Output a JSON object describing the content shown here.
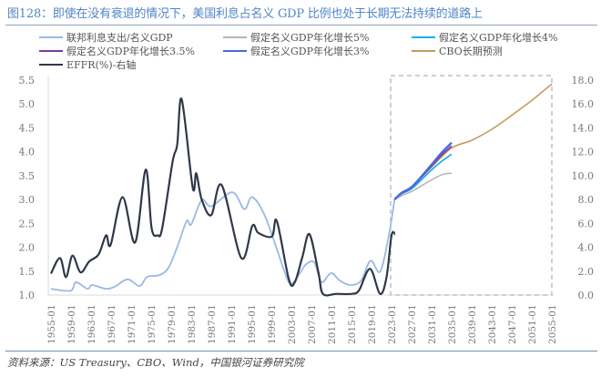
{
  "title": "图128：即使在没有衰退的情况下，美国利息占名义 GDP 比例也处于长期无法持续的道路上",
  "source": "资料来源：US Treasury、CBO、Wind，中国银河证券研究院",
  "chart_data": {
    "type": "line",
    "legend_position": "top",
    "grid": false,
    "projection_box": {
      "x_from": 2023,
      "x_to": 2055,
      "style": "dashed"
    },
    "x_tick_labels": [
      "1955-01",
      "1959-01",
      "1963-01",
      "1967-01",
      "1971-01",
      "1975-01",
      "1979-01",
      "1983-01",
      "1987-01",
      "1991-01",
      "1995-01",
      "1999-01",
      "2003-01",
      "2007-01",
      "2011-01",
      "2015-01",
      "2019-01",
      "2023-01",
      "2027-01",
      "2031-01",
      "2035-01",
      "2039-01",
      "2043-01",
      "2047-01",
      "2051-01",
      "2055-01"
    ],
    "xlim": [
      1955,
      2055
    ],
    "y_left": {
      "lim": [
        1.0,
        5.5
      ],
      "ticks": [
        "1.0",
        "1.5",
        "2.0",
        "2.5",
        "3.0",
        "3.5",
        "4.0",
        "4.5",
        "5.0",
        "5.5"
      ]
    },
    "y_right": {
      "lim": [
        0,
        18
      ],
      "ticks": [
        "0.0",
        "2.0",
        "4.0",
        "6.0",
        "8.0",
        "10.0",
        "12.0",
        "14.0",
        "16.0",
        "18.0"
      ]
    },
    "series": [
      {
        "name": "联邦利息支出/名义GDP",
        "axis": "left",
        "color": "#9bb9e2",
        "x": [
          1955,
          1958.9,
          1960,
          1962.3,
          1963.2,
          1966,
          1967.8,
          1970.3,
          1972.7,
          1974.2,
          1976.7,
          1978.5,
          1980.3,
          1982.1,
          1983,
          1985.1,
          1987,
          1991.2,
          1993.6,
          1995.2,
          1997.9,
          2002.2,
          2003.4,
          2004.7,
          2006,
          2007.6,
          2009,
          2010.9,
          2012.7,
          2014.8,
          2016.9,
          2018.8,
          2020.7,
          2022.4,
          2023.6
        ],
        "y": [
          1.13,
          1.09,
          1.27,
          1.13,
          1.21,
          1.13,
          1.18,
          1.33,
          1.19,
          1.38,
          1.42,
          1.58,
          2.03,
          2.55,
          2.48,
          2.99,
          2.86,
          3.15,
          2.8,
          3.05,
          2.61,
          1.33,
          1.27,
          1.46,
          1.65,
          1.68,
          1.27,
          1.46,
          1.3,
          1.21,
          1.3,
          1.72,
          1.49,
          2.22,
          3.0
        ]
      },
      {
        "name": "假定名义GDP年化增长5%",
        "axis": "left",
        "color": "#b4b4b4",
        "x": [
          2023.6,
          2025,
          2027.2,
          2030.8,
          2033.3,
          2035
        ],
        "y": [
          3.0,
          3.08,
          3.18,
          3.4,
          3.53,
          3.55
        ]
      },
      {
        "name": "假定名义GDP年化增长4%",
        "axis": "left",
        "color": "#1cb0e8",
        "x": [
          2023.6,
          2025,
          2027.2,
          2030.8,
          2033,
          2035
        ],
        "y": [
          3.0,
          3.12,
          3.24,
          3.6,
          3.8,
          3.95
        ]
      },
      {
        "name": "假定名义GDP年化增长3.5%",
        "axis": "left",
        "color": "#7a3c9e",
        "x": [
          2023.6,
          2025,
          2027.2,
          2030.8,
          2033,
          2035
        ],
        "y": [
          3.0,
          3.13,
          3.27,
          3.68,
          3.93,
          4.12
        ]
      },
      {
        "name": "假定名义GDP年化增长3%",
        "axis": "left",
        "color": "#4a68e0",
        "x": [
          2023.6,
          2025,
          2027.2,
          2031,
          2033,
          2035
        ],
        "y": [
          3.0,
          3.14,
          3.28,
          3.73,
          3.98,
          4.19
        ]
      },
      {
        "name": "CBO长期预测",
        "axis": "left",
        "color": "#c49a5e",
        "x": [
          2023.6,
          2025,
          2027.2,
          2031,
          2035,
          2039,
          2043.3,
          2047.6,
          2051.3,
          2055
        ],
        "y": [
          3.0,
          3.13,
          3.28,
          3.68,
          4.08,
          4.24,
          4.49,
          4.81,
          5.1,
          5.42
        ]
      },
      {
        "name": "EFFR(%)-右轴",
        "axis": "right",
        "color": "#2f3848",
        "x": [
          1955,
          1956.8,
          1958,
          1959.3,
          1960.9,
          1962.6,
          1964.5,
          1966,
          1966.9,
          1969.3,
          1971.8,
          1973.9,
          1975.1,
          1976.3,
          1977.2,
          1979.3,
          1980.2,
          1981.1,
          1983.3,
          1984,
          1985.1,
          1987,
          1989.1,
          1993,
          1995.2,
          1996.4,
          1999.1,
          2000.1,
          2002.5,
          2003.7,
          2005.2,
          2006.6,
          2008.4,
          2009.3,
          2012,
          2015,
          2016.5,
          2018.7,
          2020.7,
          2022,
          2023,
          2023.7
        ],
        "y": [
          1.8,
          3.1,
          1.5,
          3.3,
          1.9,
          2.8,
          3.4,
          5.0,
          4.2,
          8.2,
          4.4,
          10.5,
          5.6,
          5.0,
          5.6,
          11.2,
          12.6,
          16.4,
          9.0,
          10.2,
          8.0,
          6.7,
          9.2,
          3.1,
          5.8,
          5.2,
          4.9,
          6.2,
          1.3,
          1.1,
          3.2,
          5.1,
          1.9,
          0.1,
          0.1,
          0.1,
          0.4,
          2.2,
          0.1,
          1.5,
          5.0,
          5.1
        ]
      }
    ]
  }
}
